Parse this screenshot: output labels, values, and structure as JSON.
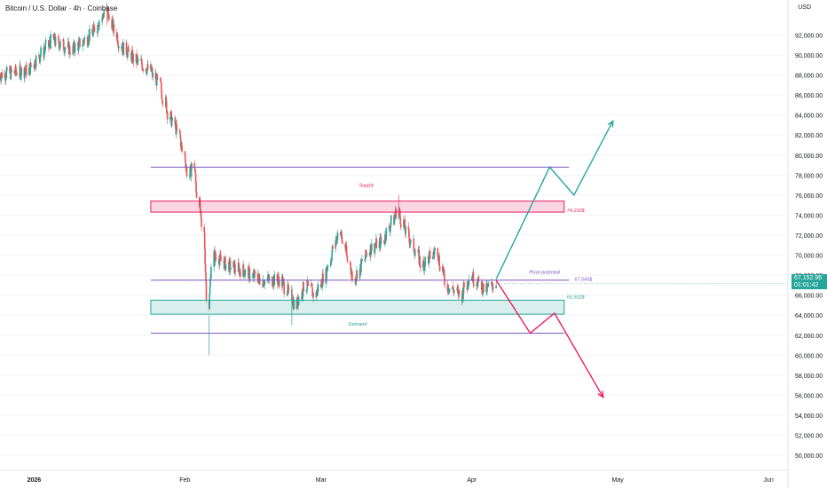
{
  "header": {
    "title": "Bitcoin / U.S. Dollar · 4h · Coinbase",
    "currency": "USD"
  },
  "price_badge": {
    "price": "67,152.96",
    "countdown": "01:01:42",
    "color": "#26a69a"
  },
  "chart_data": {
    "type": "candlestick",
    "title": "Bitcoin / U.S. Dollar · 4h · Coinbase",
    "y_unit": "USD",
    "ylim": [
      48500,
      95500
    ],
    "y_ticks": [
      "50,000.00",
      "52,000.00",
      "54,000.00",
      "56,000.00",
      "58,000.00",
      "60,000.00",
      "62,000.00",
      "64,000.00",
      "66,000.00",
      "68,000.00",
      "70,000.00",
      "72,000.00",
      "74,000.00",
      "76,000.00",
      "78,000.00",
      "80,000.00",
      "82,000.00",
      "84,000.00",
      "86,000.00",
      "88,000.00",
      "90,000.00",
      "92,000.00"
    ],
    "y_tick_values": [
      50000,
      52000,
      54000,
      56000,
      58000,
      60000,
      62000,
      64000,
      66000,
      68000,
      70000,
      72000,
      74000,
      76000,
      78000,
      80000,
      82000,
      84000,
      86000,
      88000,
      90000,
      92000
    ],
    "x_ticks": [
      {
        "label": "2026",
        "date": "2026-01-01"
      },
      {
        "label": "Feb",
        "date": "2026-02-01"
      },
      {
        "label": "Mar",
        "date": "2026-03-01"
      },
      {
        "label": "Apr",
        "date": "2026-04-01"
      },
      {
        "label": "May",
        "date": "2026-05-01"
      },
      {
        "label": "Jun",
        "date": "2026-06-01"
      }
    ],
    "x_range": [
      "2025-12-25",
      "2026-06-05"
    ],
    "colors": {
      "up": "#26a69a",
      "down": "#ef5350",
      "supply": "#e91e63",
      "demand": "#26a69a",
      "level": "#7e57c2"
    },
    "price_path": [
      {
        "date": "2025-12-25",
        "price": 88000
      },
      {
        "date": "2025-12-31",
        "price": 88500
      },
      {
        "date": "2026-01-05",
        "price": 91500
      },
      {
        "date": "2026-01-09",
        "price": 90500
      },
      {
        "date": "2026-01-13",
        "price": 92000
      },
      {
        "date": "2026-01-16",
        "price": 94500
      },
      {
        "date": "2026-01-19",
        "price": 91000
      },
      {
        "date": "2026-01-22",
        "price": 89500
      },
      {
        "date": "2026-01-25",
        "price": 88500
      },
      {
        "date": "2026-01-27",
        "price": 87000
      },
      {
        "date": "2026-01-29",
        "price": 84000
      },
      {
        "date": "2026-01-31",
        "price": 82000
      },
      {
        "date": "2026-02-02",
        "price": 78000
      },
      {
        "date": "2026-02-03",
        "price": 79000
      },
      {
        "date": "2026-02-05",
        "price": 72000
      },
      {
        "date": "2026-02-06",
        "price": 65000
      },
      {
        "date": "2026-02-07",
        "price": 70000
      },
      {
        "date": "2026-02-10",
        "price": 69000
      },
      {
        "date": "2026-02-13",
        "price": 68500
      },
      {
        "date": "2026-02-17",
        "price": 67500
      },
      {
        "date": "2026-02-21",
        "price": 67500
      },
      {
        "date": "2026-02-24",
        "price": 65000
      },
      {
        "date": "2026-02-26",
        "price": 67000
      },
      {
        "date": "2026-02-28",
        "price": 66000
      },
      {
        "date": "2026-03-02",
        "price": 68000
      },
      {
        "date": "2026-03-05",
        "price": 72500
      },
      {
        "date": "2026-03-08",
        "price": 67500
      },
      {
        "date": "2026-03-11",
        "price": 70500
      },
      {
        "date": "2026-03-14",
        "price": 71500
      },
      {
        "date": "2026-03-17",
        "price": 74500
      },
      {
        "date": "2026-03-19",
        "price": 72000
      },
      {
        "date": "2026-03-22",
        "price": 69000
      },
      {
        "date": "2026-03-25",
        "price": 70500
      },
      {
        "date": "2026-03-27",
        "price": 67000
      },
      {
        "date": "2026-03-30",
        "price": 66000
      },
      {
        "date": "2026-04-01",
        "price": 68000
      },
      {
        "date": "2026-04-04",
        "price": 66500
      },
      {
        "date": "2026-04-06",
        "price": 67153
      }
    ],
    "wick_extremes": [
      {
        "date": "2026-02-06",
        "low": 60000
      },
      {
        "date": "2026-03-17",
        "high": 76000
      },
      {
        "date": "2026-02-23",
        "low": 63000
      },
      {
        "date": "2026-01-16",
        "high": 95000
      }
    ],
    "zones": [
      {
        "label": "Supply",
        "top": 75400,
        "bottom": 74300,
        "start": "2026-01-25",
        "end": "2026-04-20",
        "color": "#e91e63",
        "level_text": "74,232$"
      },
      {
        "label": "Demand",
        "top": 65500,
        "bottom": 64100,
        "start": "2026-01-25",
        "end": "2026-04-20",
        "color": "#26a69a",
        "level_text": "65,502$"
      }
    ],
    "lines": [
      {
        "price": 78800,
        "start": "2026-01-25",
        "end": "2026-04-21",
        "color": "#7e57c2"
      },
      {
        "price": 67500,
        "start": "2026-01-25",
        "end": "2026-04-21",
        "color": "#7e57c2",
        "label": "Pivot potential",
        "level_text": "67,545$"
      },
      {
        "price": 62200,
        "start": "2026-01-25",
        "end": "2026-04-20",
        "color": "#7e57c2"
      }
    ],
    "projections": [
      {
        "color": "#26a69a",
        "points": [
          {
            "date": "2026-04-06",
            "price": 67600
          },
          {
            "date": "2026-04-17",
            "price": 78800
          },
          {
            "date": "2026-04-22",
            "price": 76000
          },
          {
            "date": "2026-04-30",
            "price": 83400
          }
        ]
      },
      {
        "color": "#e91e63",
        "points": [
          {
            "date": "2026-04-06",
            "price": 67500
          },
          {
            "date": "2026-04-13",
            "price": 62200
          },
          {
            "date": "2026-04-18",
            "price": 64200
          },
          {
            "date": "2026-04-28",
            "price": 55800
          }
        ]
      }
    ]
  }
}
